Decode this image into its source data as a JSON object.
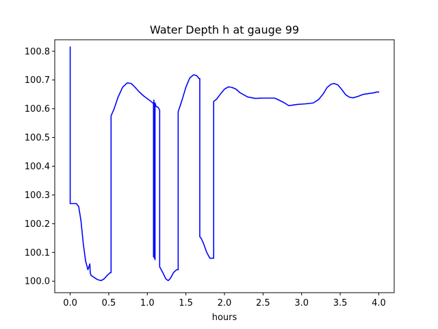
{
  "chart_data": {
    "type": "line",
    "title": "Water Depth h at gauge 99",
    "xlabel": "hours",
    "ylabel": "",
    "xlim": [
      -0.2,
      4.2
    ],
    "ylim": [
      99.96,
      100.84
    ],
    "xticks": [
      0.0,
      0.5,
      1.0,
      1.5,
      2.0,
      2.5,
      3.0,
      3.5,
      4.0
    ],
    "xtick_labels": [
      "0.0",
      "0.5",
      "1.0",
      "1.5",
      "2.0",
      "2.5",
      "3.0",
      "3.5",
      "4.0"
    ],
    "yticks": [
      100.0,
      100.1,
      100.2,
      100.3,
      100.4,
      100.5,
      100.6,
      100.7,
      100.8
    ],
    "ytick_labels": [
      "100.0",
      "100.1",
      "100.2",
      "100.3",
      "100.4",
      "100.5",
      "100.6",
      "100.7",
      "100.8"
    ],
    "grid": false,
    "legend": "none",
    "series": [
      {
        "color": "#0000ff",
        "x": [
          0.0,
          0.0,
          0.01,
          0.08,
          0.11,
          0.14,
          0.17,
          0.2,
          0.23,
          0.255,
          0.26,
          0.27,
          0.3,
          0.35,
          0.4,
          0.44,
          0.48,
          0.52,
          0.53,
          0.53,
          0.57,
          0.62,
          0.68,
          0.74,
          0.79,
          0.84,
          0.89,
          0.95,
          1.0,
          1.05,
          1.07,
          1.08,
          1.08,
          1.085,
          1.09,
          1.095,
          1.1,
          1.1,
          1.105,
          1.11,
          1.12,
          1.14,
          1.16,
          1.16,
          1.2,
          1.24,
          1.27,
          1.3,
          1.34,
          1.38,
          1.4,
          1.4,
          1.45,
          1.5,
          1.55,
          1.6,
          1.64,
          1.67,
          1.68,
          1.68,
          1.7,
          1.73,
          1.77,
          1.81,
          1.85,
          1.86,
          1.86,
          1.9,
          1.95,
          2.0,
          2.05,
          2.1,
          2.15,
          2.2,
          2.3,
          2.4,
          2.5,
          2.6,
          2.65,
          2.7,
          2.78,
          2.83,
          2.87,
          2.95,
          3.05,
          3.15,
          3.22,
          3.28,
          3.33,
          3.38,
          3.42,
          3.47,
          3.52,
          3.57,
          3.62,
          3.67,
          3.73,
          3.8,
          3.87,
          3.93,
          3.97,
          4.0
        ],
        "y": [
          100.815,
          100.27,
          100.27,
          100.27,
          100.26,
          100.21,
          100.13,
          100.07,
          100.04,
          100.06,
          100.03,
          100.02,
          100.015,
          100.006,
          100.002,
          100.008,
          100.02,
          100.03,
          100.03,
          100.575,
          100.6,
          100.64,
          100.675,
          100.69,
          100.688,
          100.675,
          100.66,
          100.645,
          100.635,
          100.625,
          100.62,
          100.62,
          100.085,
          100.63,
          100.08,
          100.62,
          100.075,
          100.62,
          100.615,
          100.61,
          100.607,
          100.605,
          100.595,
          100.05,
          100.03,
          100.008,
          100.002,
          100.01,
          100.03,
          100.04,
          100.04,
          100.59,
          100.63,
          100.675,
          100.707,
          100.718,
          100.715,
          100.705,
          100.705,
          100.155,
          100.148,
          100.13,
          100.1,
          100.08,
          100.08,
          100.08,
          100.625,
          100.634,
          100.652,
          100.668,
          100.676,
          100.674,
          100.668,
          100.656,
          100.641,
          100.636,
          100.637,
          100.637,
          100.637,
          100.631,
          100.62,
          100.611,
          100.612,
          100.615,
          100.617,
          100.62,
          100.632,
          100.652,
          100.674,
          100.685,
          100.688,
          100.683,
          100.667,
          100.649,
          100.64,
          100.638,
          100.643,
          100.65,
          100.653,
          100.655,
          100.658,
          100.658
        ]
      }
    ]
  }
}
